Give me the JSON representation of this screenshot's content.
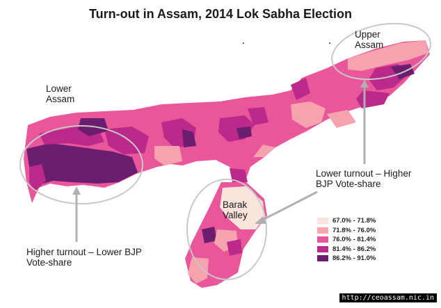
{
  "title": "Turn-out in Assam, 2014 Lok Sabha Election",
  "regions": {
    "upper": "Upper Assam",
    "lower": "Lower Assam",
    "barak": "Barak Valley"
  },
  "annotations": {
    "right": "Lower turnout – Higher BJP Vote-share",
    "left": "Higher turnout – Lower BJP Vote-share"
  },
  "legend": [
    {
      "label": "67.0% - 71.8%",
      "color": "#fbe4dc"
    },
    {
      "label": "71.8% - 76.0%",
      "color": "#f5a3ae"
    },
    {
      "label": "76.0% - 81.4%",
      "color": "#e9579a"
    },
    {
      "label": "81.4% - 86.2%",
      "color": "#bb2a8a"
    },
    {
      "label": "86.2% - 91.0%",
      "color": "#6b1d70"
    }
  ],
  "source": "http://ceoassam.nic.in"
}
